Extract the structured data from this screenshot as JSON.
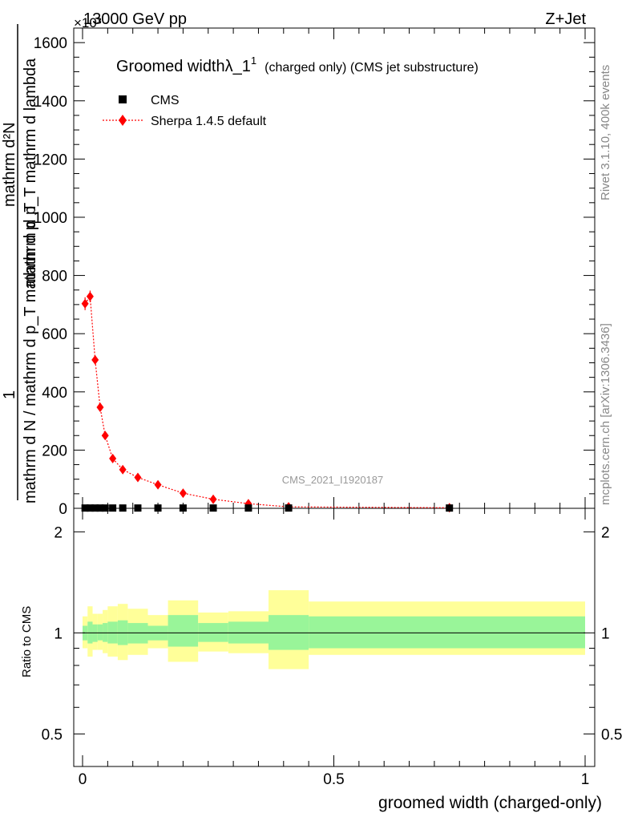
{
  "header": {
    "left": "13000 GeV pp",
    "right": "Z+Jet",
    "exponent": "×10³"
  },
  "side_labels": {
    "rivet": "Rivet 3.1.10,  400k events",
    "mcplots": "mcplots.cern.ch [arXiv:1306.3436]"
  },
  "watermark": "CMS_2021_I1920187",
  "plot_title": {
    "main": "Groomed width",
    "symbol": "λ_1",
    "superscript": "1",
    "suffix": "(charged only) (CMS jet substructure)"
  },
  "legend": {
    "entries": [
      {
        "label": "CMS",
        "color": "#000000",
        "marker": "square"
      },
      {
        "label": "Sherpa 1.4.5 default",
        "color": "#ff0000",
        "marker": "diamond"
      }
    ]
  },
  "y_axis_label": {
    "numerator_top": "mathrm d²N",
    "numerator_bottom": "mathrm d p_T mathrm d lambda",
    "one": "1",
    "denominator": "mathrm d N / mathrm d p_T mathrm d p_T",
    "pt_sub": "T"
  },
  "ratio_ylabel": "Ratio to CMS",
  "xlabel": "groomed width (charged-only)",
  "chart_data": [
    {
      "type": "scatter",
      "panel": "main",
      "xlim": [
        0,
        1
      ],
      "ylim": [
        0,
        1650
      ],
      "y_multiplier": "10^3",
      "yticks": [
        0,
        200,
        400,
        600,
        800,
        1000,
        1200,
        1400,
        1600
      ],
      "ytick_labels": [
        "0",
        "200",
        "400",
        "600",
        "800",
        "1000",
        "1200",
        "1400",
        "1600"
      ],
      "grid": false,
      "legend_position": "top-left",
      "series": [
        {
          "name": "CMS",
          "x": [
            0.005,
            0.015,
            0.025,
            0.035,
            0.045,
            0.06,
            0.08,
            0.11,
            0.15,
            0.2,
            0.26,
            0.33,
            0.41,
            0.73
          ],
          "y": [
            1,
            1,
            1,
            1,
            1,
            1,
            1,
            1,
            1,
            1,
            1,
            1,
            1,
            1
          ]
        },
        {
          "name": "Sherpa 1.4.5 default",
          "x": [
            0.005,
            0.015,
            0.025,
            0.035,
            0.045,
            0.06,
            0.08,
            0.11,
            0.15,
            0.2,
            0.26,
            0.33,
            0.41,
            0.73
          ],
          "y": [
            703,
            728,
            510,
            347,
            250,
            171,
            133,
            106,
            81,
            52,
            31,
            16,
            5,
            2
          ],
          "yerr": [
            22,
            20,
            15,
            12,
            10,
            8,
            7,
            5,
            5,
            4,
            3,
            2,
            1,
            1
          ]
        }
      ]
    },
    {
      "type": "area",
      "panel": "ratio",
      "xlim": [
        0,
        1
      ],
      "ylim": [
        0.4,
        2.35
      ],
      "log_y": true,
      "yticks": [
        0.5,
        1,
        2
      ],
      "ytick_labels": [
        "0.5",
        "1",
        "2"
      ],
      "xticks": [
        0,
        0.5,
        1
      ],
      "xtick_labels": [
        "0",
        "0.5",
        "1"
      ],
      "bin_edges": [
        0,
        0.01,
        0.02,
        0.03,
        0.04,
        0.05,
        0.07,
        0.09,
        0.13,
        0.17,
        0.23,
        0.29,
        0.37,
        0.45,
        1.0
      ],
      "inner_band": {
        "low": [
          0.95,
          0.93,
          0.94,
          0.95,
          0.94,
          0.93,
          0.92,
          0.93,
          0.95,
          0.91,
          0.94,
          0.93,
          0.89,
          0.9
        ],
        "high": [
          1.05,
          1.08,
          1.06,
          1.06,
          1.07,
          1.08,
          1.09,
          1.07,
          1.05,
          1.13,
          1.07,
          1.08,
          1.13,
          1.12
        ]
      },
      "outer_band": {
        "low": [
          0.9,
          0.85,
          0.89,
          0.89,
          0.87,
          0.85,
          0.83,
          0.86,
          0.9,
          0.82,
          0.88,
          0.87,
          0.78,
          0.86
        ],
        "high": [
          1.12,
          1.2,
          1.14,
          1.14,
          1.17,
          1.2,
          1.22,
          1.18,
          1.13,
          1.25,
          1.15,
          1.16,
          1.34,
          1.24
        ]
      },
      "reference": 1.0
    }
  ],
  "colors": {
    "inner_band": "#99f599",
    "outer_band": "#ffff99",
    "data": "#000000",
    "mc": "#ff0000"
  }
}
